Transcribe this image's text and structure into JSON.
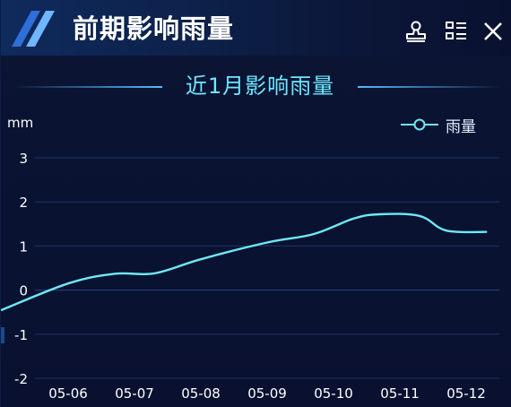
{
  "header": {
    "title": "前期影响雨量",
    "icons": [
      "stamp-icon",
      "list-icon",
      "close-icon"
    ]
  },
  "chart_data": {
    "type": "line",
    "title": "近1月影响雨量",
    "unit": "mm",
    "categories": [
      "05-06",
      "05-07",
      "05-08",
      "05-09",
      "05-10",
      "05-11",
      "05-12"
    ],
    "yticks": [
      3,
      2,
      1,
      0,
      -1,
      -2
    ],
    "ylim": [
      -2,
      3
    ],
    "series": [
      {
        "name": "雨量",
        "color": "#6ee9f5",
        "points": [
          {
            "x": "05-05",
            "y": -0.45
          },
          {
            "x": "05-06",
            "y": 0.15
          },
          {
            "x": "05-07",
            "y": 0.37
          },
          {
            "x": "05-07",
            "y": 0.38
          },
          {
            "x": "05-08",
            "y": 0.7
          },
          {
            "x": "05-09",
            "y": 1.08
          },
          {
            "x": "05-10",
            "y": 1.27
          },
          {
            "x": "05-10",
            "y": 1.62
          },
          {
            "x": "05-11",
            "y": 1.72
          },
          {
            "x": "05-11",
            "y": 1.68
          },
          {
            "x": "05-12",
            "y": 1.35
          },
          {
            "x": "05-12",
            "y": 1.32
          }
        ]
      }
    ],
    "legend": "top-right",
    "grid": true
  }
}
